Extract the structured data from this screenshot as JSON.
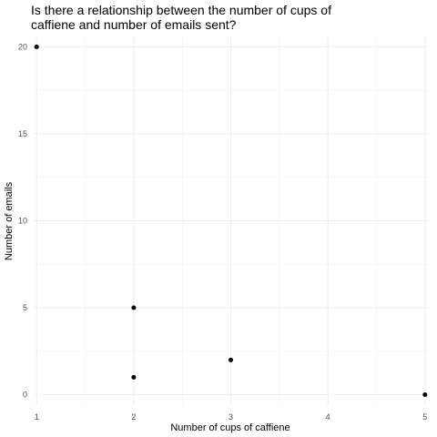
{
  "chart_data": {
    "type": "scatter",
    "title_lines": [
      "Is there a relationship between the number of cups of",
      "caffiene and number of emails sent?"
    ],
    "xlabel": "Number of cups of caffiene",
    "ylabel": "Number of emails",
    "x_ticks": [
      1,
      2,
      3,
      4,
      5
    ],
    "y_ticks": [
      0,
      5,
      10,
      15,
      20
    ],
    "xlim": [
      0.97,
      5.03
    ],
    "ylim": [
      -0.6,
      20.6
    ],
    "grid": true,
    "points": [
      {
        "x": 1,
        "y": 20
      },
      {
        "x": 2,
        "y": 5
      },
      {
        "x": 2,
        "y": 1
      },
      {
        "x": 3,
        "y": 2
      },
      {
        "x": 5,
        "y": 0
      }
    ],
    "point_color": "#000000",
    "grid_color": "#ebebeb"
  }
}
